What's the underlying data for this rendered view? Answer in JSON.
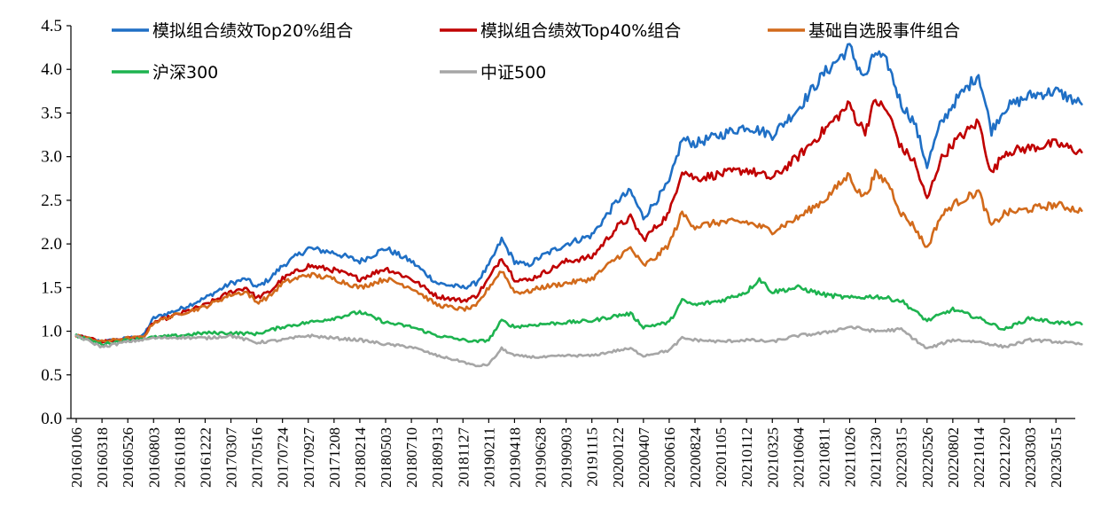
{
  "chart_data": {
    "type": "line",
    "title": "",
    "xlabel": "",
    "ylabel": "",
    "ylim": [
      0,
      4.5
    ],
    "y_ticks": [
      "0.0",
      "0.5",
      "1.0",
      "1.5",
      "2.0",
      "2.5",
      "3.0",
      "3.5",
      "4.0",
      "4.5"
    ],
    "x_tick_labels": [
      "20160106",
      "20160318",
      "20160526",
      "20160803",
      "20161018",
      "20161222",
      "20170307",
      "20170516",
      "20170724",
      "20170927",
      "20171208",
      "20180214",
      "20180503",
      "20180710",
      "20180913",
      "20181127",
      "20190211",
      "20190418",
      "20190628",
      "20190903",
      "20191115",
      "20200122",
      "20200407",
      "20200616",
      "20200824",
      "20201105",
      "20210112",
      "20210325",
      "20210604",
      "20210811",
      "20211026",
      "20211230",
      "20220315",
      "20220526",
      "20220802",
      "20221014",
      "20221220",
      "20230303",
      "20230515"
    ],
    "grid": false,
    "legend_position": "top",
    "series": [
      {
        "name": "模拟组合绩效Top20%组合",
        "color": "#1f6fc5",
        "x": [
          0,
          1.0,
          2.0,
          2.6,
          3.0,
          3.5,
          4.0,
          5.0,
          6.0,
          6.6,
          7.0,
          7.5,
          8.0,
          9.0,
          10.0,
          11.0,
          12.0,
          13.0,
          14.0,
          15.0,
          15.5,
          16.0,
          16.5,
          17.0,
          17.5,
          18.0,
          19.0,
          20.0,
          21.0,
          21.5,
          22.0,
          22.5,
          23.0,
          23.5,
          24.0,
          25.0,
          26.0,
          27.0,
          28.0,
          29.0,
          30.0,
          30.3,
          30.6,
          31.0,
          31.5,
          32.0,
          32.5,
          33.0,
          33.5,
          34.0,
          35.0,
          35.5,
          36.0,
          37.0,
          38.0,
          39.0
        ],
        "values": [
          0.95,
          0.88,
          0.92,
          0.95,
          1.15,
          1.2,
          1.25,
          1.38,
          1.55,
          1.6,
          1.5,
          1.6,
          1.75,
          1.95,
          1.9,
          1.8,
          1.95,
          1.8,
          1.55,
          1.5,
          1.55,
          1.75,
          2.05,
          1.8,
          1.75,
          1.85,
          2.0,
          2.1,
          2.5,
          2.6,
          2.3,
          2.5,
          2.7,
          3.2,
          3.15,
          3.25,
          3.35,
          3.25,
          3.55,
          3.95,
          4.25,
          4.05,
          3.9,
          4.2,
          4.05,
          3.6,
          3.4,
          2.9,
          3.35,
          3.6,
          3.95,
          3.3,
          3.55,
          3.7,
          3.75,
          3.6
        ]
      },
      {
        "name": "模拟组合绩效Top40%组合",
        "color": "#c00000",
        "x": [
          0,
          1.0,
          2.0,
          2.6,
          3.0,
          3.5,
          4.0,
          5.0,
          6.0,
          6.6,
          7.0,
          7.5,
          8.0,
          9.0,
          10.0,
          11.0,
          12.0,
          13.0,
          14.0,
          15.0,
          15.5,
          16.0,
          16.5,
          17.0,
          17.5,
          18.0,
          19.0,
          20.0,
          21.0,
          21.5,
          22.0,
          22.5,
          23.0,
          23.5,
          24.0,
          25.0,
          26.0,
          27.0,
          28.0,
          29.0,
          30.0,
          30.3,
          30.6,
          31.0,
          31.5,
          32.0,
          32.5,
          33.0,
          33.5,
          34.0,
          35.0,
          35.5,
          36.0,
          37.0,
          38.0,
          39.0
        ],
        "values": [
          0.95,
          0.88,
          0.92,
          0.93,
          1.1,
          1.15,
          1.2,
          1.3,
          1.45,
          1.5,
          1.38,
          1.45,
          1.6,
          1.75,
          1.7,
          1.6,
          1.72,
          1.6,
          1.4,
          1.35,
          1.4,
          1.6,
          1.85,
          1.6,
          1.58,
          1.65,
          1.8,
          1.85,
          2.2,
          2.3,
          2.05,
          2.2,
          2.35,
          2.85,
          2.75,
          2.8,
          2.85,
          2.75,
          3.0,
          3.3,
          3.6,
          3.4,
          3.3,
          3.65,
          3.5,
          3.1,
          2.95,
          2.5,
          2.95,
          3.15,
          3.4,
          2.8,
          3.05,
          3.1,
          3.15,
          3.05
        ]
      },
      {
        "name": "基础自选股事件组合",
        "color": "#d26a1b",
        "x": [
          0,
          1.0,
          2.0,
          2.6,
          3.0,
          3.5,
          4.0,
          5.0,
          6.0,
          6.6,
          7.0,
          7.5,
          8.0,
          9.0,
          10.0,
          11.0,
          12.0,
          13.0,
          14.0,
          15.0,
          15.5,
          16.0,
          16.5,
          17.0,
          17.5,
          18.0,
          19.0,
          20.0,
          21.0,
          21.5,
          22.0,
          22.5,
          23.0,
          23.5,
          24.0,
          25.0,
          26.0,
          27.0,
          28.0,
          29.0,
          30.0,
          30.3,
          30.6,
          31.0,
          31.5,
          32.0,
          32.5,
          33.0,
          33.5,
          34.0,
          35.0,
          35.5,
          36.0,
          37.0,
          38.0,
          39.0
        ],
        "values": [
          0.95,
          0.88,
          0.92,
          0.93,
          1.1,
          1.15,
          1.2,
          1.28,
          1.42,
          1.45,
          1.33,
          1.4,
          1.55,
          1.65,
          1.6,
          1.5,
          1.6,
          1.5,
          1.3,
          1.25,
          1.28,
          1.5,
          1.7,
          1.45,
          1.45,
          1.5,
          1.55,
          1.6,
          1.85,
          1.95,
          1.75,
          1.85,
          2.0,
          2.35,
          2.2,
          2.25,
          2.25,
          2.15,
          2.3,
          2.5,
          2.8,
          2.6,
          2.55,
          2.8,
          2.7,
          2.35,
          2.2,
          1.95,
          2.3,
          2.45,
          2.6,
          2.2,
          2.35,
          2.4,
          2.45,
          2.38
        ]
      },
      {
        "name": "沪深300",
        "color": "#1db34f",
        "x": [
          0,
          1.0,
          2.0,
          3.0,
          4.0,
          5.0,
          6.0,
          7.0,
          8.0,
          9.0,
          10.0,
          11.0,
          12.0,
          13.0,
          14.0,
          15.0,
          15.5,
          16.0,
          16.5,
          17.0,
          18.0,
          19.0,
          20.0,
          21.0,
          21.5,
          22.0,
          23.0,
          23.5,
          24.0,
          25.0,
          26.0,
          26.5,
          27.0,
          28.0,
          29.0,
          30.0,
          31.0,
          32.0,
          33.0,
          34.0,
          35.0,
          36.0,
          37.0,
          38.0,
          39.0
        ],
        "values": [
          0.95,
          0.85,
          0.9,
          0.93,
          0.95,
          0.98,
          0.98,
          0.97,
          1.05,
          1.1,
          1.15,
          1.22,
          1.1,
          1.05,
          0.95,
          0.9,
          0.88,
          0.9,
          1.12,
          1.05,
          1.08,
          1.1,
          1.12,
          1.18,
          1.2,
          1.05,
          1.1,
          1.35,
          1.3,
          1.35,
          1.45,
          1.6,
          1.45,
          1.5,
          1.42,
          1.38,
          1.4,
          1.35,
          1.12,
          1.25,
          1.15,
          1.02,
          1.15,
          1.1,
          1.08
        ]
      },
      {
        "name": "中证500",
        "color": "#a6a6a6",
        "x": [
          0,
          1.0,
          2.0,
          3.0,
          4.0,
          5.0,
          6.0,
          7.0,
          8.0,
          9.0,
          10.0,
          11.0,
          12.0,
          13.0,
          14.0,
          15.0,
          15.5,
          16.0,
          16.5,
          17.0,
          18.0,
          19.0,
          20.0,
          21.0,
          21.5,
          22.0,
          23.0,
          23.5,
          24.0,
          25.0,
          26.0,
          27.0,
          28.0,
          29.0,
          30.0,
          31.0,
          32.0,
          33.0,
          34.0,
          35.0,
          36.0,
          37.0,
          38.0,
          39.0
        ],
        "values": [
          0.95,
          0.82,
          0.88,
          0.92,
          0.93,
          0.92,
          0.95,
          0.87,
          0.9,
          0.95,
          0.92,
          0.9,
          0.85,
          0.82,
          0.72,
          0.65,
          0.6,
          0.62,
          0.8,
          0.72,
          0.7,
          0.72,
          0.72,
          0.78,
          0.8,
          0.72,
          0.78,
          0.92,
          0.9,
          0.88,
          0.9,
          0.88,
          0.95,
          0.98,
          1.05,
          1.0,
          1.02,
          0.8,
          0.9,
          0.88,
          0.82,
          0.9,
          0.88,
          0.85
        ]
      }
    ]
  }
}
